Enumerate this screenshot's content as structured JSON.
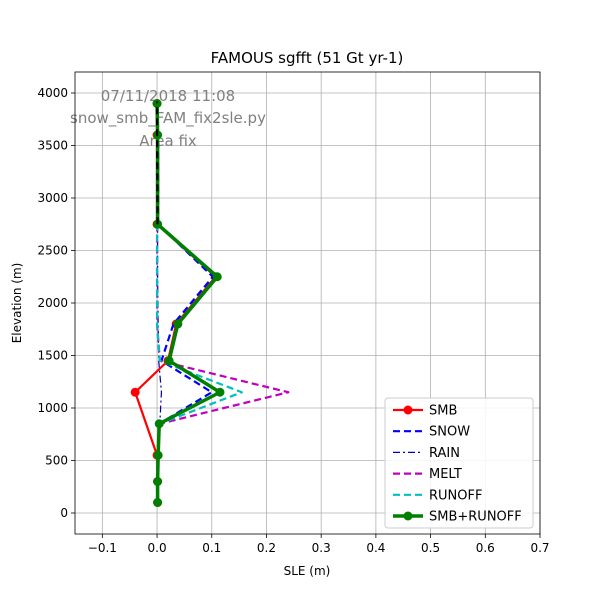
{
  "chart_data": {
    "type": "line",
    "title": "FAMOUS sgfft (51 Gt yr-1)",
    "xlabel": "SLE (m)",
    "ylabel": "Elevation (m)",
    "xlim": [
      -0.15,
      0.7
    ],
    "ylim": [
      -200,
      4200
    ],
    "xticks": [
      -0.1,
      0.0,
      0.1,
      0.2,
      0.3,
      0.4,
      0.5,
      0.6,
      0.7
    ],
    "xtick_labels": [
      "−0.1",
      "0.0",
      "0.1",
      "0.2",
      "0.3",
      "0.4",
      "0.5",
      "0.6",
      "0.7"
    ],
    "yticks": [
      0,
      500,
      1000,
      1500,
      2000,
      2500,
      3000,
      3500,
      4000
    ],
    "ytick_labels": [
      "0",
      "500",
      "1000",
      "1500",
      "2000",
      "2500",
      "3000",
      "3500",
      "4000"
    ],
    "grid": true,
    "legend_position": "lower-right",
    "annotations": [
      "07/11/2018 11:08",
      "snow_smb_FAM_fix2sle.py",
      "Area fix"
    ],
    "annotation_color": "#808080",
    "series": [
      {
        "name": "SMB",
        "color": "#ff0000",
        "style": "solid",
        "marker": "circle",
        "x": [
          0.001,
          0.001,
          0.0,
          -0.04,
          0.02,
          0.035,
          0.107,
          0.0,
          0.0,
          0.0
        ],
        "y": [
          100,
          300,
          550,
          1150,
          1450,
          1800,
          2250,
          2750,
          3600,
          3900
        ]
      },
      {
        "name": "SNOW",
        "color": "#0000ff",
        "style": "dashed",
        "marker": "none",
        "x": [
          0.001,
          0.001,
          0.002,
          0.004,
          0.1,
          0.008,
          0.03,
          0.102,
          0.002,
          0.002,
          0.001
        ],
        "y": [
          100,
          300,
          550,
          850,
          1150,
          1450,
          1800,
          2250,
          2750,
          3600,
          3900
        ]
      },
      {
        "name": "RAIN",
        "color": "#0000aa",
        "style": "dashdot",
        "marker": "none",
        "x": [
          0.001,
          0.001,
          0.003,
          0.005,
          0.008,
          0.003,
          0.002,
          0.001,
          0.001,
          0.0,
          0.0
        ],
        "y": [
          100,
          300,
          550,
          850,
          1150,
          1450,
          1800,
          2250,
          2750,
          3600,
          3900
        ]
      },
      {
        "name": "MELT",
        "color": "#bf00bf",
        "style": "dashed",
        "marker": "none",
        "x": [
          0.0,
          0.0,
          0.0,
          0.005,
          0.24,
          0.005,
          0.0,
          0.0,
          0.0,
          0.0,
          0.0
        ],
        "y": [
          100,
          300,
          550,
          850,
          1150,
          1450,
          1800,
          2250,
          2750,
          3600,
          3900
        ]
      },
      {
        "name": "RUNOFF",
        "color": "#00bfbf",
        "style": "dashed",
        "marker": "none",
        "x": [
          0.0,
          0.0,
          0.0,
          0.005,
          0.155,
          0.005,
          0.0,
          0.0,
          0.0,
          0.0,
          0.0
        ],
        "y": [
          100,
          300,
          550,
          850,
          1150,
          1450,
          1800,
          2250,
          2750,
          3600,
          3900
        ]
      },
      {
        "name": "SMB+RUNOFF",
        "color": "#008000",
        "style": "solid-thick",
        "marker": "circle",
        "x": [
          0.001,
          0.001,
          0.002,
          0.004,
          0.115,
          0.022,
          0.038,
          0.11,
          0.001,
          0.001,
          0.0
        ],
        "y": [
          100,
          300,
          550,
          850,
          1150,
          1450,
          1800,
          2250,
          2750,
          3600,
          3900
        ]
      }
    ],
    "extra_series": [
      {
        "name": "",
        "color": "#000000",
        "style": "dashed",
        "marker": "none",
        "x": [
          0.001,
          0.0,
          0.0
        ],
        "y": [
          2750,
          3600,
          3920
        ]
      }
    ]
  }
}
